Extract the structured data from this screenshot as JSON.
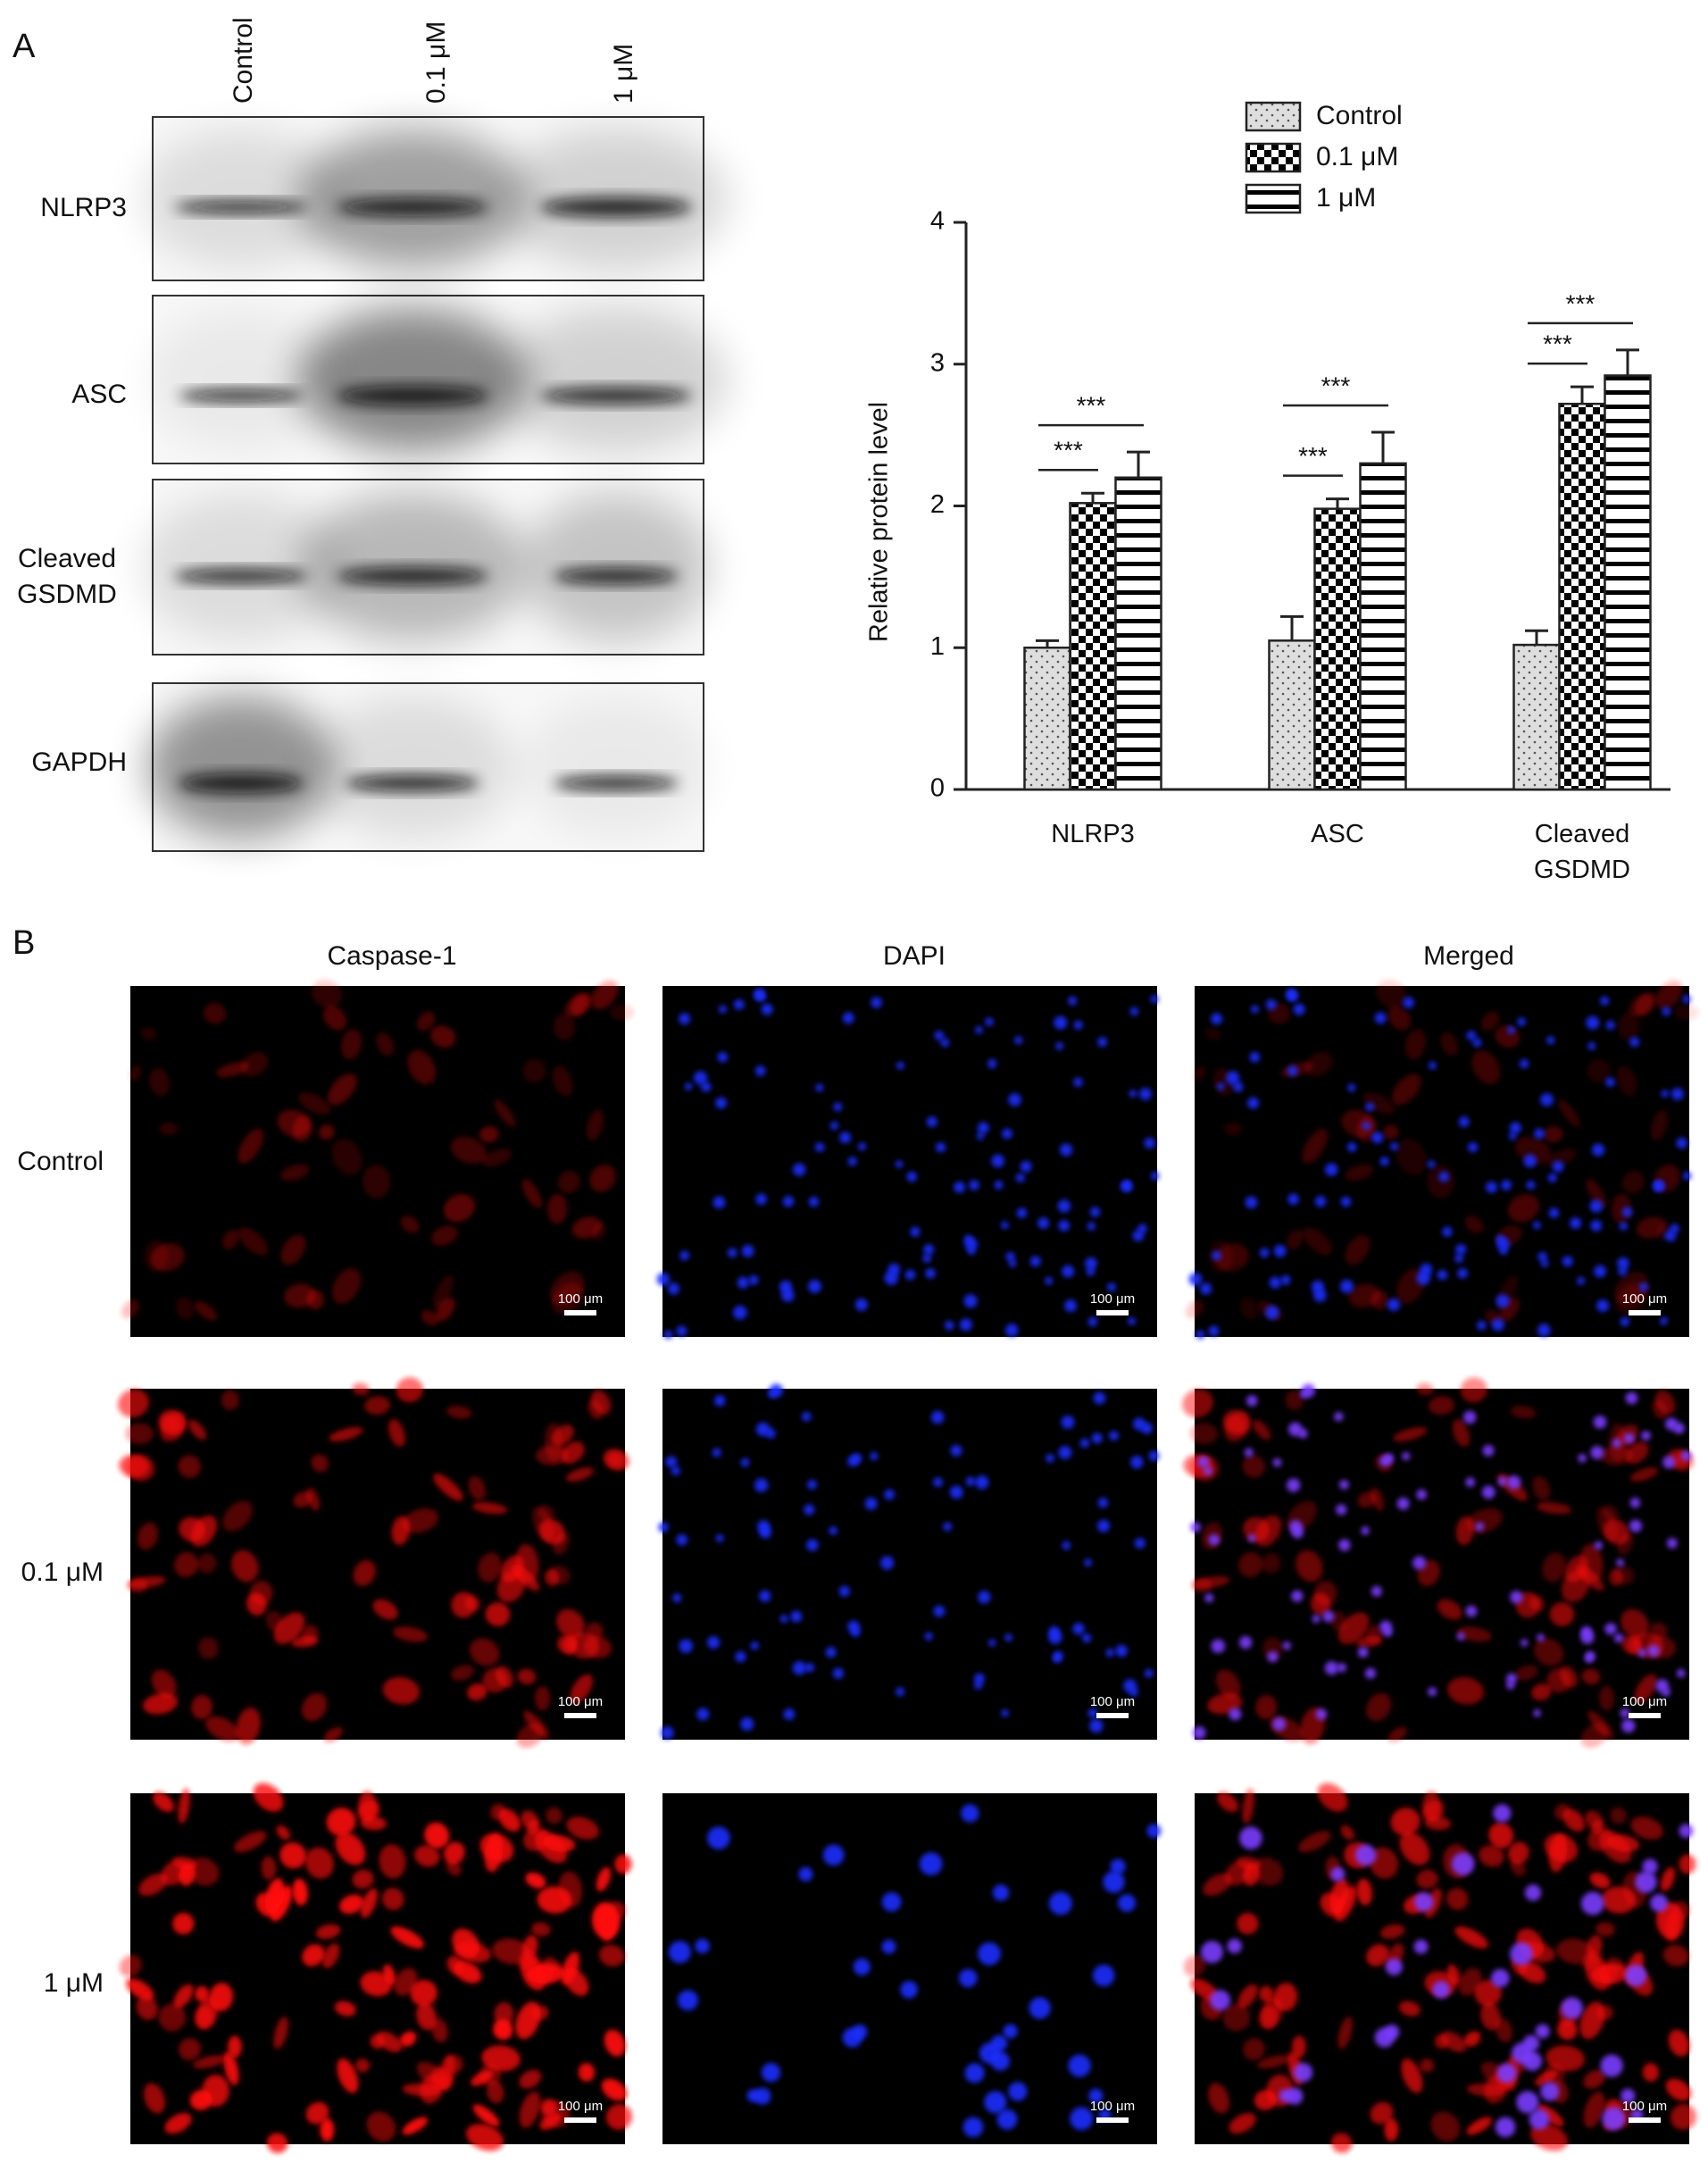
{
  "panel_a": {
    "label": "A",
    "lanes": [
      "Control",
      "0.1 μM",
      "1 μM"
    ],
    "blots": [
      "NLRP3",
      "ASC",
      "Cleaved GSDMD",
      "GAPDH"
    ]
  },
  "chart_data": {
    "type": "bar",
    "y_label": "Relative protein level",
    "categories": [
      "NLRP3",
      "ASC",
      "Cleaved GSDMD"
    ],
    "series": [
      {
        "name": "Control",
        "pattern": "dots",
        "values": [
          1.0,
          1.05,
          1.02
        ],
        "errors": [
          0.05,
          0.17,
          0.1
        ]
      },
      {
        "name": "0.1 μM",
        "pattern": "checker",
        "values": [
          2.02,
          1.98,
          2.72
        ],
        "errors": [
          0.07,
          0.07,
          0.12
        ]
      },
      {
        "name": "1 μM",
        "pattern": "stripes",
        "values": [
          2.2,
          2.3,
          2.92
        ],
        "errors": [
          0.18,
          0.22,
          0.18
        ]
      }
    ],
    "significance": [
      [
        "***",
        "***"
      ],
      [
        "***",
        "***"
      ],
      [
        "***",
        "***"
      ]
    ],
    "ylim": [
      0,
      4
    ],
    "yticks": [
      0,
      1,
      2,
      3,
      4
    ]
  },
  "panel_b": {
    "label": "B",
    "columns": [
      "Caspase-1",
      "DAPI",
      "Merged"
    ],
    "rows": [
      "Control",
      "0.1 μM",
      "1 μM"
    ],
    "scale_bar": "100 μm"
  }
}
